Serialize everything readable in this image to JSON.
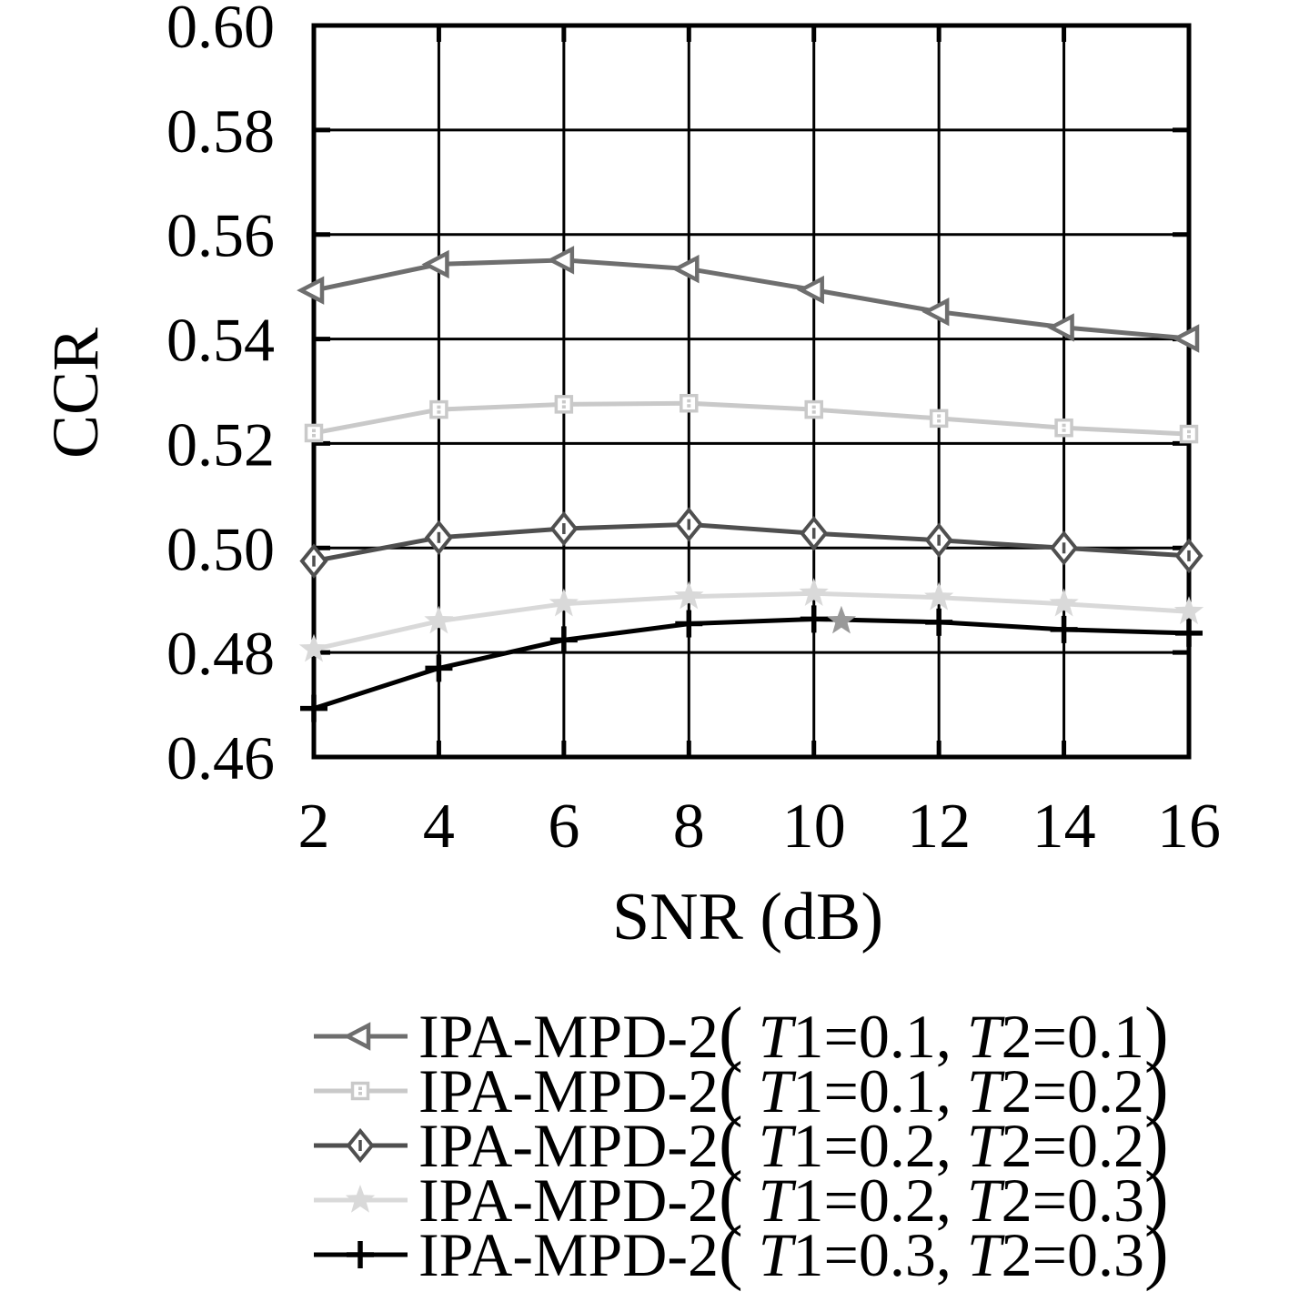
{
  "chart_data": {
    "type": "line",
    "title": "",
    "xlabel": "SNR (dB)",
    "ylabel": "CCR",
    "x": [
      2,
      4,
      6,
      8,
      10,
      12,
      14,
      16
    ],
    "xlim": [
      2,
      16
    ],
    "ylim": [
      0.46,
      0.6
    ],
    "xticks": [
      2,
      4,
      6,
      8,
      10,
      12,
      14,
      16
    ],
    "yticks": [
      0.46,
      0.48,
      0.5,
      0.52,
      0.54,
      0.56,
      0.58,
      0.6
    ],
    "grid": true,
    "legend_position": "below",
    "series": [
      {
        "label": "IPA-MPD-2( T1=0.1, T2=0.1)",
        "marker": "triangle-left",
        "color": "#6e6e6e",
        "values": [
          0.5493,
          0.5543,
          0.5551,
          0.5534,
          0.5494,
          0.5452,
          0.5422,
          0.5401
        ]
      },
      {
        "label": "IPA-MPD-2( T1=0.1, T2=0.2)",
        "marker": "square-dot",
        "color": "#c9c9c9",
        "values": [
          0.522,
          0.5265,
          0.5275,
          0.5277,
          0.5265,
          0.5248,
          0.523,
          0.5218
        ]
      },
      {
        "label": "IPA-MPD-2( T1=0.2, T2=0.2)",
        "marker": "diamond",
        "color": "#4f4f4f",
        "values": [
          0.4975,
          0.502,
          0.5037,
          0.5045,
          0.5028,
          0.5015,
          0.5,
          0.4985
        ]
      },
      {
        "label": "IPA-MPD-2( T1=0.2, T2=0.3)",
        "marker": "star",
        "color": "#d9d9d9",
        "values": [
          0.4806,
          0.486,
          0.4893,
          0.4907,
          0.4913,
          0.4905,
          0.4893,
          0.4878
        ]
      },
      {
        "label": "IPA-MPD-2( T1=0.3, T2=0.3)",
        "marker": "plus",
        "color": "#000000",
        "values": [
          0.4693,
          0.477,
          0.4824,
          0.4855,
          0.4864,
          0.4858,
          0.4844,
          0.4837
        ]
      }
    ],
    "stray_marker": {
      "x": 10.44,
      "y": 0.486,
      "marker": "star",
      "color": "#999999"
    }
  }
}
